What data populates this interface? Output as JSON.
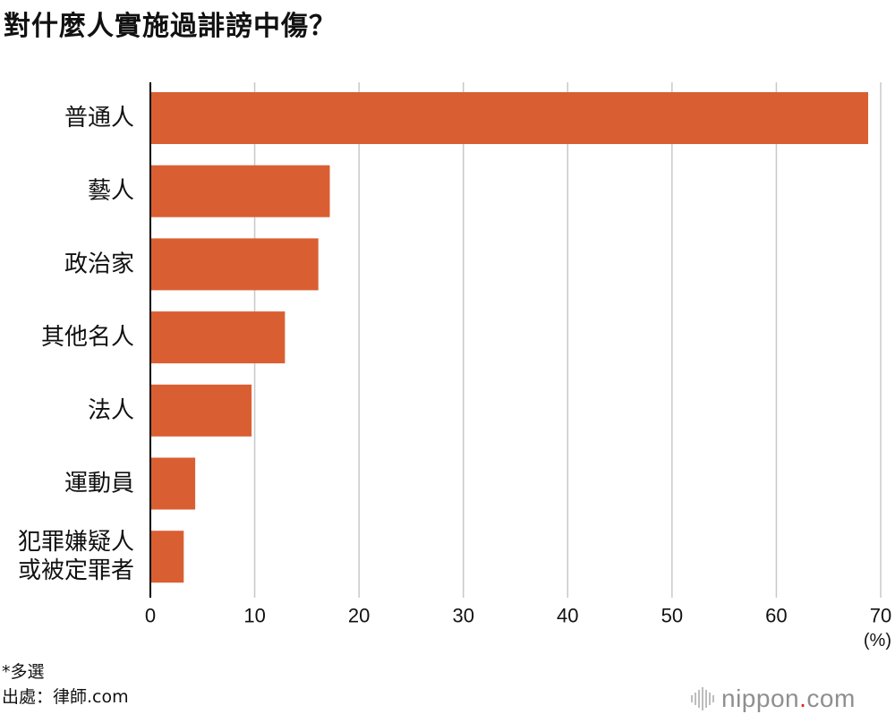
{
  "title": "對什麼人實施過誹謗中傷？",
  "notes": {
    "multi_select": "*多選",
    "source": "出處：律師.com"
  },
  "logo": {
    "name": "nippon",
    "dot": ".",
    "suffix": "com"
  },
  "colors": {
    "bar": "#d95f33",
    "grid": "#c8c8c8",
    "axis": "#000000",
    "text": "#111111"
  },
  "chart_data": {
    "type": "bar",
    "orientation": "horizontal",
    "categories": [
      [
        "普通人"
      ],
      [
        "藝人"
      ],
      [
        "政治家"
      ],
      [
        "其他名人"
      ],
      [
        "法人"
      ],
      [
        "運動員"
      ],
      [
        "犯罪嫌疑人",
        "或被定罪者"
      ]
    ],
    "values": [
      68.8,
      17.2,
      16.1,
      12.9,
      9.7,
      4.3,
      3.2
    ],
    "xlim": [
      0,
      70
    ],
    "xticks": [
      0,
      10,
      20,
      30,
      40,
      50,
      60,
      70
    ],
    "unit": "(%)",
    "grid": true
  }
}
